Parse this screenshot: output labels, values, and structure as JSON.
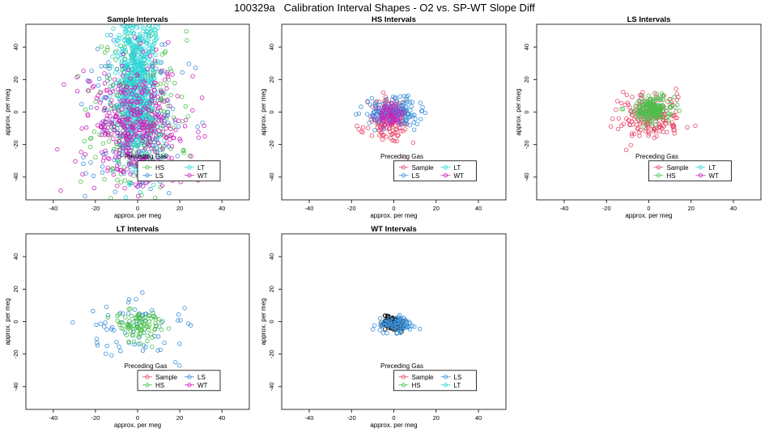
{
  "title": "100329a   Calibration Interval Shapes - O2 vs. SP-WT Slope Diff",
  "colors": {
    "Sample": "#E64A6A",
    "HS": "#4CC04C",
    "LS": "#3A8FD8",
    "LT": "#2ED6D6",
    "WT": "#CC22BB",
    "black": "#000000"
  },
  "chart_data": [
    {
      "type": "scatter",
      "title": "Sample Intervals",
      "xlabel": "approx. per meg",
      "ylabel": "approx. per meg",
      "xlim": [
        -53,
        53
      ],
      "ylim": [
        -54,
        54
      ],
      "xticks": [
        -40,
        -20,
        0,
        20,
        40
      ],
      "yticks": [
        -40,
        -20,
        0,
        20,
        40
      ],
      "legend": {
        "title": "Preceding Gas",
        "entries": [
          "HS",
          "LT",
          "LS",
          "WT"
        ],
        "position": "bottom-right"
      },
      "series": [
        {
          "name": "HS",
          "cx": 0,
          "cy": 0,
          "sx": 10,
          "sy": 25,
          "n": 300,
          "seed": 11
        },
        {
          "name": "LS",
          "cx": 0,
          "cy": -5,
          "sx": 10,
          "sy": 25,
          "n": 260,
          "seed": 12
        },
        {
          "name": "LT",
          "cx": 0,
          "cy": 22,
          "sx": 5,
          "sy": 28,
          "n": 700,
          "seed": 13
        },
        {
          "name": "WT",
          "cx": 0,
          "cy": -8,
          "sx": 12,
          "sy": 20,
          "n": 420,
          "seed": 14
        }
      ]
    },
    {
      "type": "scatter",
      "title": "HS Intervals",
      "xlabel": "approx. per meg",
      "ylabel": "approx. per meg",
      "xlim": [
        -53,
        53
      ],
      "ylim": [
        -54,
        54
      ],
      "xticks": [
        -40,
        -20,
        0,
        20,
        40
      ],
      "yticks": [
        -40,
        -20,
        0,
        20,
        40
      ],
      "legend": {
        "title": "Preceding Gas",
        "entries": [
          "Sample",
          "LT",
          "LS",
          "WT"
        ],
        "position": "bottom-right"
      },
      "series": [
        {
          "name": "Sample",
          "cx": -2,
          "cy": -6,
          "sx": 5,
          "sy": 7,
          "n": 140,
          "seed": 21
        },
        {
          "name": "LS",
          "cx": 0,
          "cy": 0,
          "sx": 6,
          "sy": 4,
          "n": 180,
          "seed": 22
        },
        {
          "name": "WT",
          "cx": -2,
          "cy": -2,
          "sx": 3,
          "sy": 3,
          "n": 70,
          "seed": 23
        }
      ]
    },
    {
      "type": "scatter",
      "title": "LS Intervals",
      "xlabel": "approx. per meg",
      "ylabel": "approx. per meg",
      "xlim": [
        -53,
        53
      ],
      "ylim": [
        -54,
        54
      ],
      "xticks": [
        -40,
        -20,
        0,
        20,
        40
      ],
      "yticks": [
        -40,
        -20,
        0,
        20,
        40
      ],
      "legend": {
        "title": "Preceding Gas",
        "entries": [
          "Sample",
          "LT",
          "HS",
          "WT"
        ],
        "position": "bottom-right"
      },
      "series": [
        {
          "name": "Sample",
          "cx": 0,
          "cy": -3,
          "sx": 8,
          "sy": 7,
          "n": 200,
          "seed": 31
        },
        {
          "name": "HS",
          "cx": 1,
          "cy": 2,
          "sx": 5,
          "sy": 4,
          "n": 180,
          "seed": 32
        }
      ]
    },
    {
      "type": "scatter",
      "title": "LT Intervals",
      "xlabel": "approx. per meg",
      "ylabel": "approx. per meg",
      "xlim": [
        -53,
        53
      ],
      "ylim": [
        -54,
        54
      ],
      "xticks": [
        -40,
        -20,
        0,
        20,
        40
      ],
      "yticks": [
        -40,
        -20,
        0,
        20,
        40
      ],
      "legend": {
        "title": "Preceding Gas",
        "entries": [
          "Sample",
          "LS",
          "HS",
          "WT"
        ],
        "position": "bottom-right"
      },
      "series": [
        {
          "name": "LS",
          "cx": 2,
          "cy": -4,
          "sx": 14,
          "sy": 9,
          "n": 70,
          "seed": 41
        },
        {
          "name": "HS",
          "cx": 0,
          "cy": -2,
          "sx": 6,
          "sy": 5,
          "n": 90,
          "seed": 42
        }
      ]
    },
    {
      "type": "scatter",
      "title": "WT Intervals",
      "xlabel": "approx. per meg",
      "ylabel": "approx. per meg",
      "xlim": [
        -53,
        53
      ],
      "ylim": [
        -54,
        54
      ],
      "xticks": [
        -40,
        -20,
        0,
        20,
        40
      ],
      "yticks": [
        -40,
        -20,
        0,
        20,
        40
      ],
      "legend": {
        "title": "Preceding Gas",
        "entries": [
          "Sample",
          "LS",
          "HS",
          "LT"
        ],
        "position": "bottom-right"
      },
      "series": [
        {
          "name": "black",
          "cx": -1,
          "cy": -1,
          "sx": 3,
          "sy": 2.5,
          "n": 70,
          "seed": 51
        },
        {
          "name": "LS",
          "cx": 1,
          "cy": -2,
          "sx": 4,
          "sy": 2.5,
          "n": 90,
          "seed": 52
        }
      ]
    }
  ]
}
